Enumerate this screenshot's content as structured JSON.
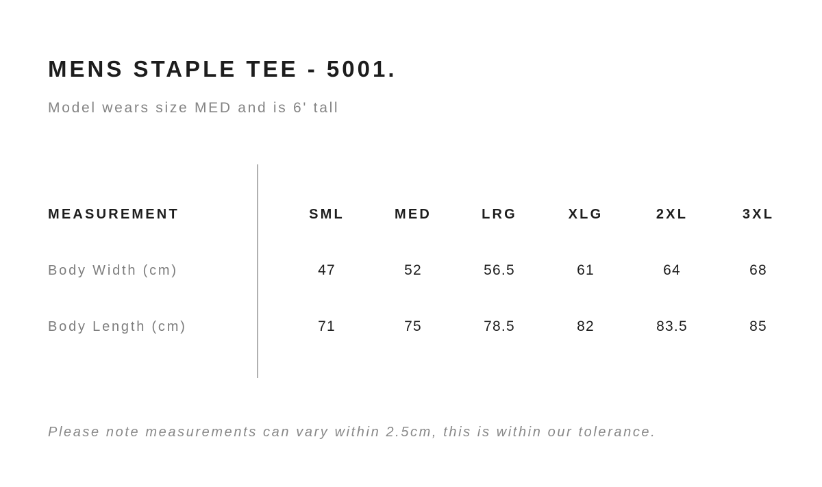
{
  "page": {
    "title": "MENS STAPLE TEE - 5001.",
    "subtitle": "Model wears size MED and is 6' tall",
    "tolerance_note": "Please note measurements can vary within 2.5cm, this is within our tolerance."
  },
  "size_chart": {
    "measurement_header": "MEASUREMENT",
    "sizes": [
      "SML",
      "MED",
      "LRG",
      "XLG",
      "2XL",
      "3XL"
    ],
    "rows": [
      {
        "label": "Body Width (cm)",
        "values": [
          "47",
          "52",
          "56.5",
          "61",
          "64",
          "68"
        ]
      },
      {
        "label": "Body Length (cm)",
        "values": [
          "71",
          "75",
          "78.5",
          "82",
          "83.5",
          "85"
        ]
      }
    ]
  },
  "colors": {
    "text_primary": "#1d1d1d",
    "text_secondary": "#848484",
    "divider": "#b0b0b0",
    "background": "#ffffff"
  }
}
